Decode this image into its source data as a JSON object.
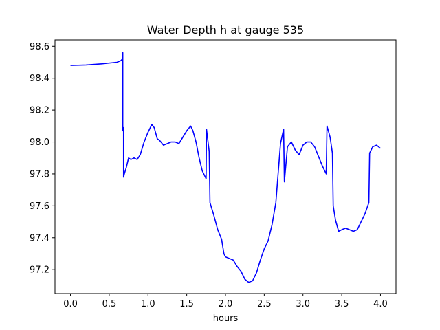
{
  "chart_data": {
    "type": "line",
    "title": "Water Depth h at gauge 535",
    "xlabel": "hours",
    "ylabel": "",
    "xlim": [
      -0.2,
      4.2
    ],
    "ylim": [
      97.05,
      98.64
    ],
    "grid": false,
    "x_ticks": [
      0.0,
      0.5,
      1.0,
      1.5,
      2.0,
      2.5,
      3.0,
      3.5,
      4.0
    ],
    "x_tick_labels": [
      "0.0",
      "0.5",
      "1.0",
      "1.5",
      "2.0",
      "2.5",
      "3.0",
      "3.5",
      "4.0"
    ],
    "y_ticks": [
      97.2,
      97.4,
      97.6,
      97.8,
      98.0,
      98.2,
      98.4,
      98.6
    ],
    "y_tick_labels": [
      "97.2",
      "97.4",
      "97.6",
      "97.8",
      "98.0",
      "98.2",
      "98.4",
      "98.6"
    ],
    "series": [
      {
        "color": "#0000ff",
        "x": [
          0.0,
          0.2,
          0.4,
          0.6,
          0.65,
          0.67,
          0.675,
          0.675,
          0.685,
          0.685,
          0.695,
          0.72,
          0.75,
          0.78,
          0.82,
          0.86,
          0.9,
          0.95,
          1.0,
          1.05,
          1.08,
          1.12,
          1.15,
          1.2,
          1.25,
          1.3,
          1.35,
          1.4,
          1.45,
          1.5,
          1.55,
          1.58,
          1.62,
          1.66,
          1.7,
          1.75,
          1.755,
          1.79,
          1.8,
          1.85,
          1.9,
          1.95,
          1.98,
          2.0,
          2.05,
          2.1,
          2.15,
          2.2,
          2.25,
          2.3,
          2.35,
          2.4,
          2.45,
          2.5,
          2.55,
          2.6,
          2.65,
          2.7,
          2.71,
          2.75,
          2.76,
          2.8,
          2.85,
          2.9,
          2.95,
          3.0,
          3.05,
          3.1,
          3.15,
          3.2,
          3.25,
          3.3,
          3.31,
          3.35,
          3.38,
          3.39,
          3.42,
          3.46,
          3.5,
          3.55,
          3.6,
          3.65,
          3.7,
          3.75,
          3.8,
          3.85,
          3.86,
          3.9,
          3.95,
          4.0
        ],
        "y": [
          98.48,
          98.483,
          98.49,
          98.5,
          98.51,
          98.52,
          98.56,
          98.07,
          98.09,
          97.78,
          97.8,
          97.84,
          97.9,
          97.89,
          97.9,
          97.89,
          97.92,
          98.0,
          98.06,
          98.11,
          98.09,
          98.02,
          98.01,
          97.98,
          97.99,
          98.0,
          98.0,
          97.99,
          98.03,
          98.07,
          98.1,
          98.07,
          98.0,
          97.9,
          97.82,
          97.77,
          98.08,
          97.94,
          97.62,
          97.54,
          97.45,
          97.39,
          97.3,
          97.28,
          97.27,
          97.26,
          97.22,
          97.19,
          97.14,
          97.12,
          97.13,
          97.18,
          97.26,
          97.33,
          97.38,
          97.48,
          97.62,
          97.93,
          97.99,
          98.08,
          97.75,
          97.97,
          98.0,
          97.95,
          97.92,
          97.98,
          98.0,
          98.0,
          97.97,
          97.91,
          97.85,
          97.8,
          98.1,
          98.03,
          97.93,
          97.6,
          97.51,
          97.44,
          97.45,
          97.46,
          97.45,
          97.44,
          97.45,
          97.5,
          97.55,
          97.62,
          97.93,
          97.97,
          97.98,
          97.96
        ]
      }
    ]
  }
}
